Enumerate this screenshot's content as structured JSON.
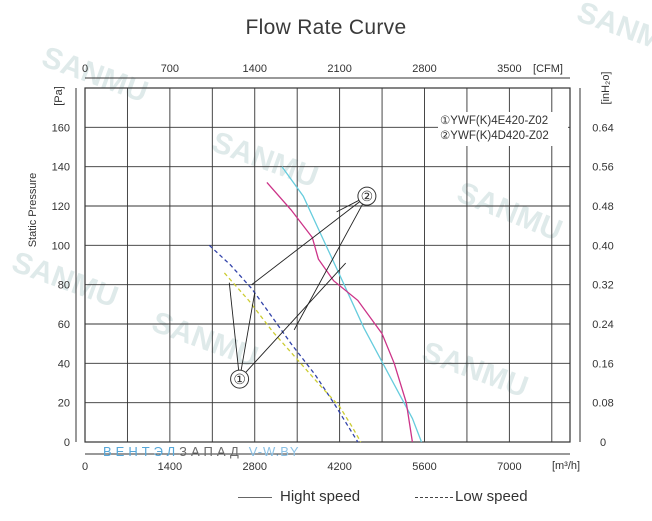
{
  "chart_data": {
    "type": "line",
    "title": "Flow Rate Curve",
    "ylabel": "Static Pressure",
    "y_unit": "[Pa]",
    "y2_unit": "[inH₂o]",
    "x_unit": "[m³/h]",
    "x2_unit": "[CFM]",
    "xlim": [
      0,
      8000
    ],
    "ylim": [
      0,
      180
    ],
    "x_ticks": [
      0,
      1400,
      2800,
      4200,
      5600,
      7000
    ],
    "x2_ticks": [
      "0",
      "700",
      "1400",
      "2100",
      "2800",
      "3500"
    ],
    "y_ticks": [
      0,
      20,
      40,
      60,
      80,
      100,
      120,
      140,
      160
    ],
    "y2_ticks": [
      "0",
      "0.08",
      "0.16",
      "0.24",
      "0.32",
      "0.40",
      "0.48",
      "0.56",
      "0.64"
    ],
    "grid": true,
    "legend_placement": "top-right",
    "models": [
      {
        "marker": "①",
        "name": "YWF(K)4E420-Z02"
      },
      {
        "marker": "②",
        "name": "YWF(K)4D420-Z02"
      }
    ],
    "speed_legend": [
      {
        "label": "Hight speed",
        "style": "solid"
      },
      {
        "label": "Low speed",
        "style": "dashed"
      }
    ],
    "series": [
      {
        "model": "②",
        "speed": "high",
        "color": "#66ccdd",
        "style": "solid",
        "x": [
          3250,
          3600,
          3900,
          4200,
          4600,
          5000,
          5400,
          5550
        ],
        "y": [
          140,
          125,
          105,
          85,
          58,
          35,
          12,
          0
        ]
      },
      {
        "model": "②",
        "speed": "high",
        "color": "#cc3388",
        "style": "solid",
        "x": [
          3000,
          3400,
          3750,
          3850,
          4100,
          4500,
          4900,
          5100,
          5300,
          5400
        ],
        "y": [
          132,
          118,
          104,
          93,
          82,
          72,
          55,
          40,
          20,
          0
        ]
      },
      {
        "model": "①",
        "speed": "low",
        "color": "#3344aa",
        "style": "dashed",
        "x": [
          2050,
          2400,
          2750,
          3100,
          3400,
          3800,
          4100,
          4300,
          4500
        ],
        "y": [
          100,
          90,
          78,
          63,
          50,
          34,
          20,
          10,
          0
        ]
      },
      {
        "model": "①",
        "speed": "low",
        "color": "#cccc33",
        "style": "dashed",
        "x": [
          2300,
          2700,
          3100,
          3500,
          3900,
          4200,
          4400,
          4550
        ],
        "y": [
          86,
          72,
          56,
          42,
          28,
          18,
          8,
          0
        ]
      }
    ],
    "pointers": [
      {
        "marker": "①",
        "label_at": [
          2550,
          32
        ],
        "targets": [
          [
            2800,
            76
          ],
          [
            4300,
            91
          ],
          [
            2380,
            81
          ]
        ]
      },
      {
        "marker": "②",
        "label_at": [
          4650,
          125
        ],
        "targets": [
          [
            2750,
            80
          ],
          [
            3450,
            57
          ],
          [
            4150,
            117
          ]
        ]
      }
    ]
  },
  "watermark": "SANMU",
  "brand": {
    "part1": "ВЕНТЭЛ",
    "part2": "ЗАПАД",
    "part3": "V-W.BY"
  }
}
